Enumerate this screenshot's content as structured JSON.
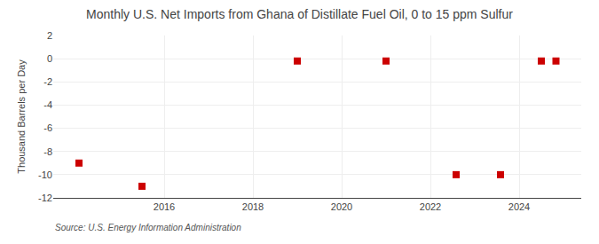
{
  "chart_data": {
    "type": "scatter",
    "title": "Monthly U.S. Net Imports from Ghana of Distillate Fuel Oil, 0 to 15 ppm Sulfur",
    "ylabel": "Thousand Barrels per Day",
    "annotations": [
      "Source: U.S. Energy Information Administration"
    ],
    "x": [
      2014.08,
      2015.5,
      2019.0,
      2021.0,
      2022.58,
      2023.58,
      2024.5,
      2024.83
    ],
    "values": [
      -9.0,
      -11.0,
      -0.2,
      -0.2,
      -10.0,
      -10.0,
      -0.2,
      -0.2
    ],
    "color": "#cc0000",
    "marker": "square",
    "xlim": [
      2013.5,
      2025.4
    ],
    "ylim": [
      -12,
      2
    ],
    "xticks": [
      2016,
      2018,
      2020,
      2022,
      2024
    ],
    "yticks": [
      2,
      0,
      -2,
      -4,
      -6,
      -8,
      -10,
      -12
    ],
    "grid": true
  }
}
